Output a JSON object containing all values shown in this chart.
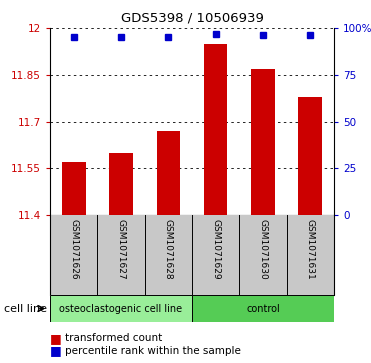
{
  "title": "GDS5398 / 10506939",
  "samples": [
    "GSM1071626",
    "GSM1071627",
    "GSM1071628",
    "GSM1071629",
    "GSM1071630",
    "GSM1071631"
  ],
  "bar_values": [
    11.57,
    11.6,
    11.67,
    11.95,
    11.87,
    11.78
  ],
  "percentile_values": [
    95,
    95,
    95,
    97,
    96,
    96
  ],
  "ylim_left": [
    11.4,
    12.0
  ],
  "ylim_right": [
    0,
    100
  ],
  "yticks_left": [
    11.4,
    11.55,
    11.7,
    11.85,
    12.0
  ],
  "yticks_right": [
    0,
    25,
    50,
    75,
    100
  ],
  "ytick_labels_left": [
    "11.4",
    "11.55",
    "11.7",
    "11.85",
    "12"
  ],
  "ytick_labels_right": [
    "0",
    "25",
    "50",
    "75",
    "100%"
  ],
  "bar_color": "#cc0000",
  "dot_color": "#0000cc",
  "groups": [
    {
      "label": "osteoclastogenic cell line",
      "indices": [
        0,
        1,
        2
      ],
      "color": "#99ee99"
    },
    {
      "label": "control",
      "indices": [
        3,
        4,
        5
      ],
      "color": "#55cc55"
    }
  ],
  "cell_line_label": "cell line",
  "legend_bar_label": "transformed count",
  "legend_dot_label": "percentile rank within the sample",
  "bar_width": 0.5,
  "dot_marker": "s",
  "grid_color": "#000000",
  "background_color": "#ffffff",
  "label_area_color": "#c8c8c8",
  "plot_area_bg": "#ffffff"
}
